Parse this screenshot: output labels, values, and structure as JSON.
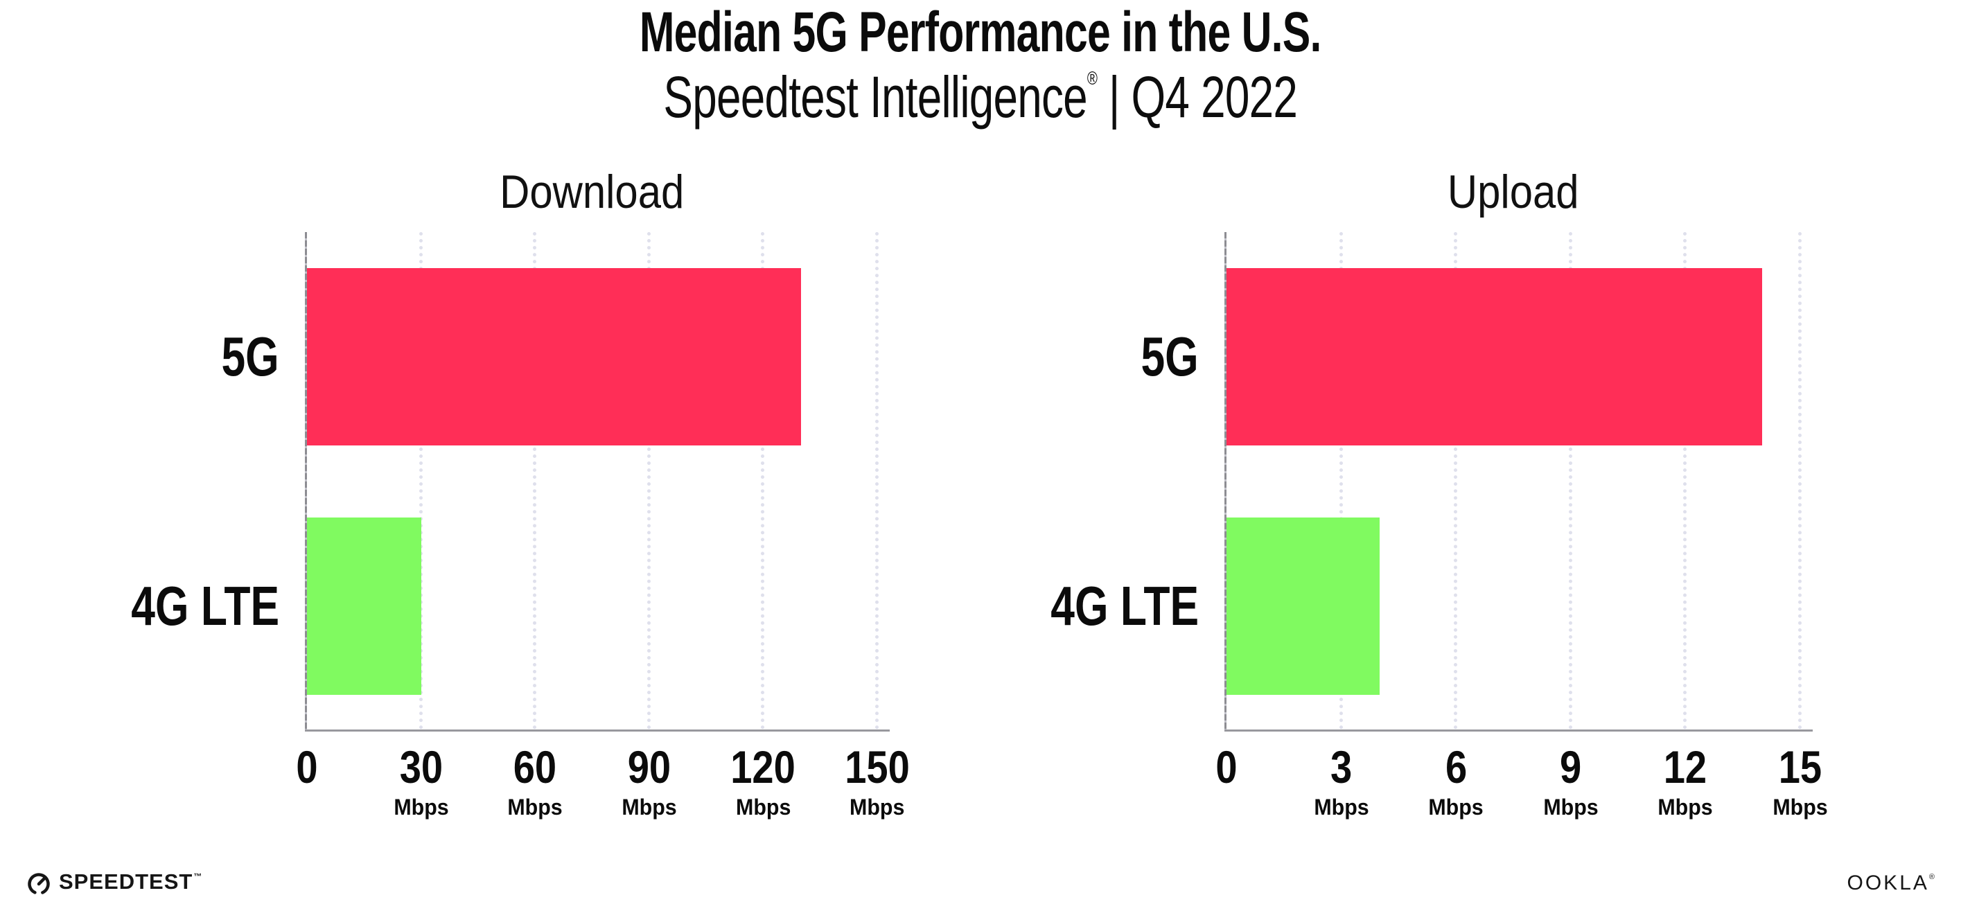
{
  "title": "Median 5G Performance in the U.S.",
  "subtitle": {
    "product": "Speedtest Intelligence",
    "registered": "®",
    "separator": "|",
    "period": "Q4 2022"
  },
  "colors": {
    "bar_5g": "#ff2e57",
    "bar_4g_lte": "#80fa60",
    "axis": "#98989e",
    "gridline": "#dfe0ec",
    "text": "#0b0b0b"
  },
  "chart_data": [
    {
      "type": "bar",
      "title": "Download",
      "orientation": "horizontal",
      "categories": [
        "5G",
        "4G LTE"
      ],
      "values": [
        130,
        30
      ],
      "unit": "Mbps",
      "xlim": [
        0,
        150
      ],
      "xticks": [
        0,
        30,
        60,
        90,
        120,
        150
      ],
      "tick_unit": "Mbps",
      "grid": "dotted-vertical",
      "legend": "none",
      "bar_colors": [
        "#ff2e57",
        "#80fa60"
      ]
    },
    {
      "type": "bar",
      "title": "Upload",
      "orientation": "horizontal",
      "categories": [
        "5G",
        "4G LTE"
      ],
      "values": [
        14,
        4
      ],
      "unit": "Mbps",
      "xlim": [
        0,
        15
      ],
      "xticks": [
        0,
        3,
        6,
        9,
        12,
        15
      ],
      "tick_unit": "Mbps",
      "grid": "dotted-vertical",
      "legend": "none",
      "bar_colors": [
        "#ff2e57",
        "#80fa60"
      ]
    }
  ],
  "footer": {
    "speedtest_label": "SPEEDTEST",
    "speedtest_tm": "™",
    "ookla_label": "OOKLA",
    "ookla_reg": "®"
  }
}
